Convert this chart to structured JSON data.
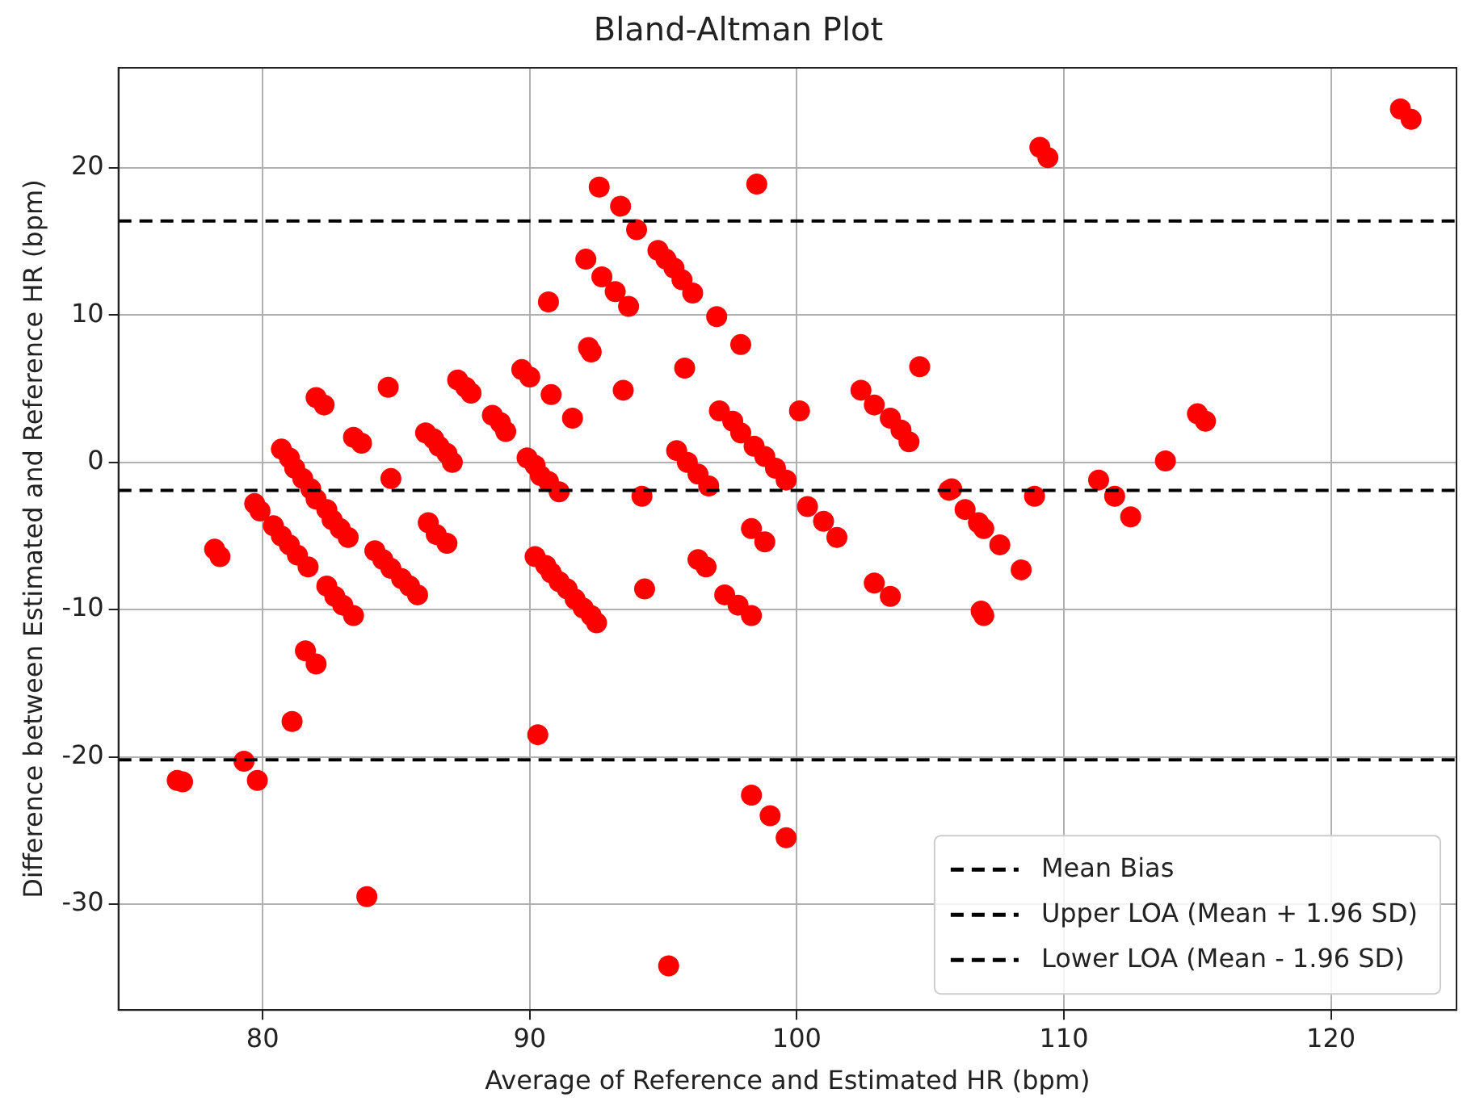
{
  "chart_data": {
    "type": "scatter",
    "title": "Bland-Altman Plot",
    "xlabel": "Average of Reference and Estimated HR (bpm)",
    "ylabel": "Difference between Estimated and Reference HR (bpm)",
    "xlim": [
      74.6,
      124.7
    ],
    "ylim": [
      -37.2,
      26.8
    ],
    "xticks": [
      80,
      90,
      100,
      110,
      120
    ],
    "yticks": [
      -30,
      -20,
      -10,
      0,
      10,
      20
    ],
    "grid": true,
    "legend": "bottom right",
    "marker": "circle",
    "series": [
      {
        "color": "#ff0000",
        "x": [
          76.8,
          77.0,
          78.2,
          78.4,
          79.3,
          79.8,
          79.7,
          79.9,
          80.7,
          81.0,
          81.2,
          81.5,
          81.8,
          82.0,
          82.4,
          82.6,
          82.9,
          83.2,
          80.4,
          80.7,
          81.0,
          81.3,
          81.7,
          82.4,
          82.7,
          83.0,
          83.4,
          82.0,
          82.3,
          83.4,
          83.7,
          84.7,
          84.8,
          84.2,
          84.5,
          84.8,
          85.2,
          85.5,
          85.8,
          81.6,
          82.0,
          81.1,
          83.9,
          86.1,
          86.4,
          86.6,
          86.9,
          87.1,
          86.2,
          86.5,
          86.9,
          87.3,
          87.6,
          87.8,
          88.6,
          88.9,
          89.1,
          89.7,
          90.0,
          89.9,
          90.2,
          90.4,
          90.7,
          91.1,
          90.2,
          90.6,
          90.8,
          91.1,
          91.4,
          90.7,
          90.8,
          91.6,
          90.3,
          91.7,
          92.0,
          92.3,
          92.5,
          92.6,
          93.4,
          94.0,
          94.8,
          95.1,
          95.4,
          95.7,
          96.1,
          97.0,
          97.9,
          98.5,
          92.1,
          92.7,
          93.2,
          93.7,
          92.2,
          92.3,
          95.8,
          93.5,
          100.1,
          102.4,
          102.9,
          103.5,
          103.9,
          104.2,
          104.6,
          97.1,
          97.6,
          97.9,
          98.4,
          98.8,
          99.2,
          99.6,
          95.5,
          95.9,
          96.3,
          96.7,
          94.2,
          98.3,
          98.8,
          96.3,
          96.6,
          97.3,
          97.8,
          98.3,
          94.3,
          100.4,
          101.0,
          101.5,
          102.9,
          103.5,
          105.7,
          106.3,
          107.0,
          106.9,
          107.0,
          98.3,
          99.0,
          99.6,
          95.2,
          105.8,
          106.8,
          107.6,
          108.4,
          108.9,
          111.3,
          111.9,
          112.5,
          113.8,
          109.1,
          109.4,
          115.0,
          115.3,
          122.6,
          123.0
        ],
        "values": [
          -21.6,
          -21.7,
          -5.9,
          -6.4,
          -20.3,
          -21.6,
          -2.8,
          -3.3,
          0.9,
          0.3,
          -0.4,
          -1.1,
          -1.8,
          -2.5,
          -3.2,
          -3.9,
          -4.5,
          -5.1,
          -4.3,
          -5.0,
          -5.6,
          -6.3,
          -7.1,
          -8.4,
          -9.1,
          -9.7,
          -10.4,
          4.4,
          3.9,
          1.7,
          1.3,
          5.1,
          -1.1,
          -6.0,
          -6.6,
          -7.2,
          -7.9,
          -8.4,
          -9.0,
          -12.8,
          -13.7,
          -17.6,
          -29.5,
          2.0,
          1.6,
          1.1,
          0.6,
          0.0,
          -4.1,
          -4.9,
          -5.5,
          5.6,
          5.1,
          4.7,
          3.2,
          2.7,
          2.1,
          6.3,
          5.8,
          0.3,
          -0.2,
          -0.9,
          -1.3,
          -2.0,
          -6.4,
          -7.0,
          -7.5,
          -8.1,
          -8.6,
          10.9,
          4.6,
          3.0,
          -18.5,
          -9.3,
          -9.9,
          -10.4,
          -10.9,
          18.7,
          17.4,
          15.8,
          14.4,
          13.8,
          13.2,
          12.4,
          11.5,
          9.9,
          8.0,
          18.9,
          13.8,
          12.6,
          11.6,
          10.6,
          7.8,
          7.5,
          6.4,
          4.9,
          3.5,
          4.9,
          3.9,
          3.0,
          2.2,
          1.4,
          6.5,
          3.5,
          2.8,
          2.0,
          1.1,
          0.4,
          -0.4,
          -1.2,
          0.8,
          0.0,
          -0.8,
          -1.6,
          -2.3,
          -4.5,
          -5.4,
          -6.6,
          -7.1,
          -9.0,
          -9.7,
          -10.4,
          -8.6,
          -3.0,
          -4.0,
          -5.1,
          -8.2,
          -9.1,
          -1.9,
          -3.2,
          -4.5,
          -10.1,
          -10.4,
          -22.6,
          -24.0,
          -25.5,
          -34.2,
          -1.8,
          -4.1,
          -5.6,
          -7.3,
          -2.3,
          -1.2,
          -2.3,
          -3.7,
          0.1,
          21.4,
          20.7,
          3.3,
          2.8,
          24.0,
          23.3
        ]
      }
    ],
    "ref_lines": [
      {
        "axis": "y",
        "value": -1.9,
        "label": "Mean Bias",
        "color": "#000000",
        "line_style": "dashed"
      },
      {
        "axis": "y",
        "value": 16.4,
        "label": "Upper LOA (Mean + 1.96 SD)",
        "color": "#000000",
        "line_style": "dashed"
      },
      {
        "axis": "y",
        "value": -20.2,
        "label": "Lower LOA (Mean - 1.96 SD)",
        "color": "#000000",
        "line_style": "dashed"
      }
    ]
  }
}
